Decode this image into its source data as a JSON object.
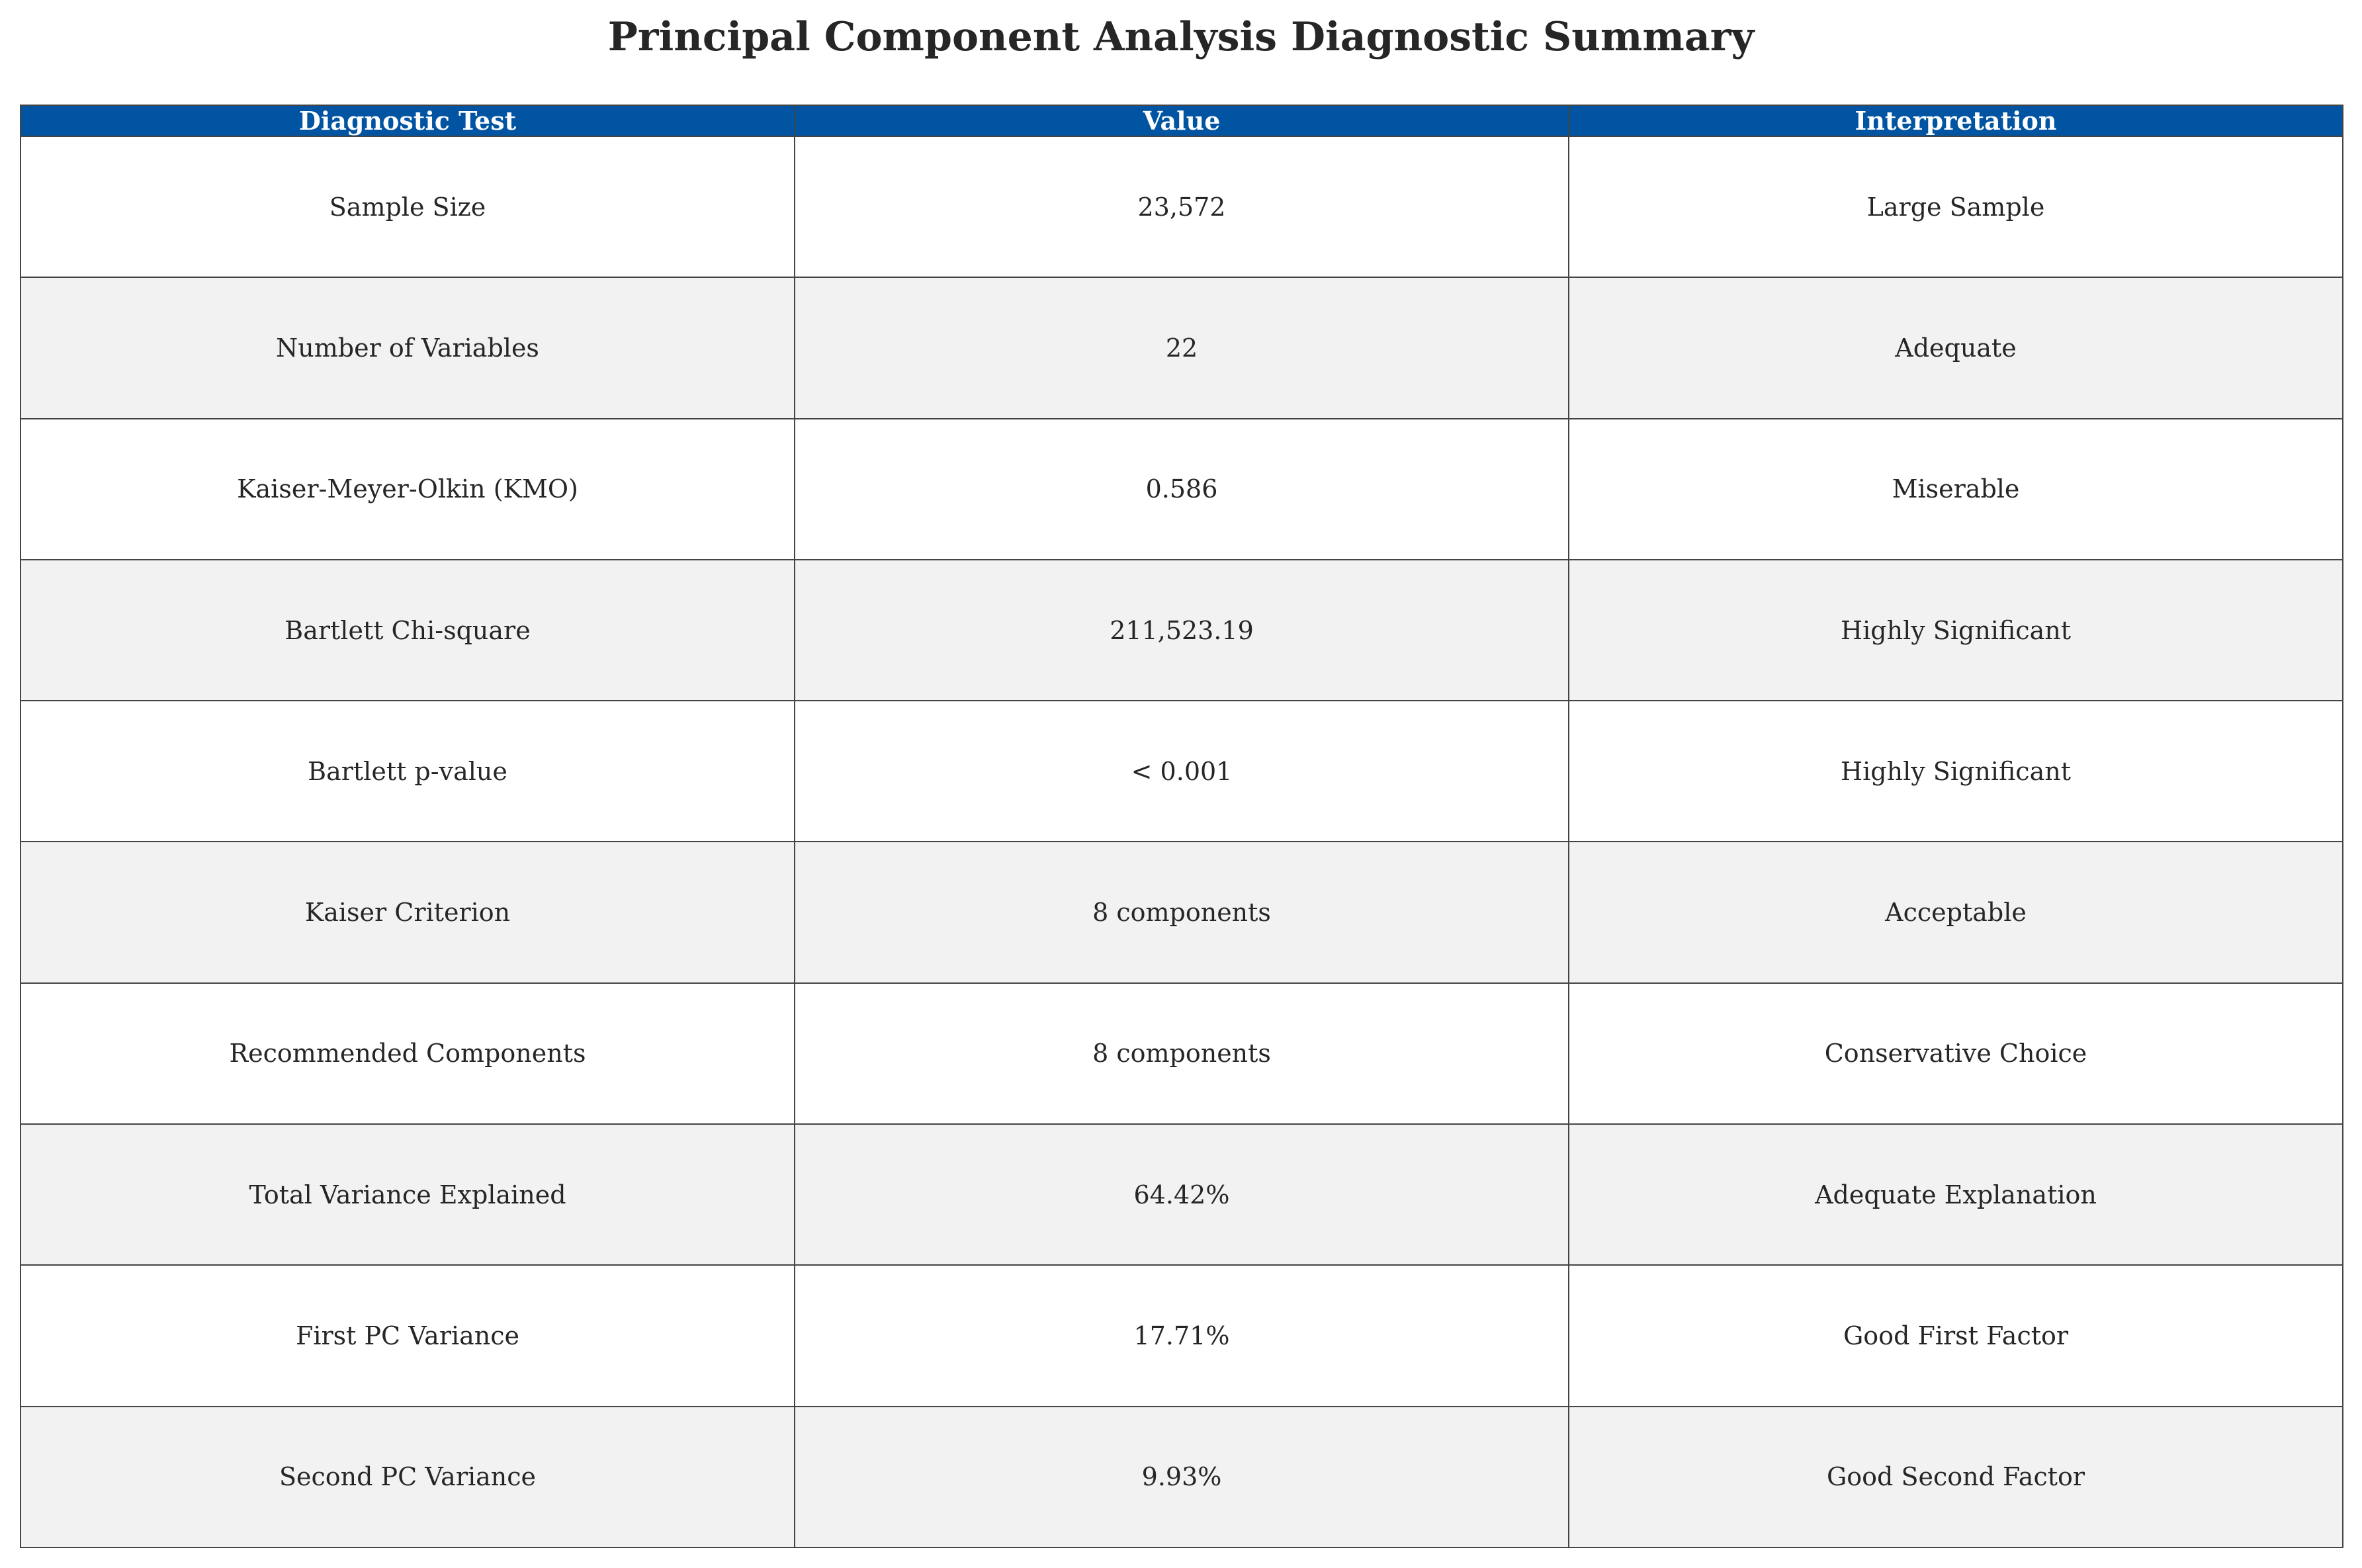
{
  "title": "Principal Component Analysis Diagnostic Summary",
  "colors": {
    "header_bg": "#0054a2",
    "header_text": "#ffffff",
    "row_alt_bg": "#f2f2f2",
    "row_bg": "#ffffff",
    "border": "#444444"
  },
  "chart_data": {
    "type": "table",
    "title": "Principal Component Analysis Diagnostic Summary",
    "columns": [
      "Diagnostic Test",
      "Value",
      "Interpretation"
    ],
    "rows": [
      [
        "Sample Size",
        "23,572",
        "Large Sample"
      ],
      [
        "Number of Variables",
        "22",
        "Adequate"
      ],
      [
        "Kaiser-Meyer-Olkin (KMO)",
        "0.586",
        "Miserable"
      ],
      [
        "Bartlett Chi-square",
        "211,523.19",
        "Highly Significant"
      ],
      [
        "Bartlett p-value",
        "< 0.001",
        "Highly Significant"
      ],
      [
        "Kaiser Criterion",
        "8 components",
        "Acceptable"
      ],
      [
        "Recommended Components",
        "8 components",
        "Conservative Choice"
      ],
      [
        "Total Variance Explained",
        "64.42%",
        "Adequate Explanation"
      ],
      [
        "First PC Variance",
        "17.71%",
        "Good First Factor"
      ],
      [
        "Second PC Variance",
        "9.93%",
        "Good Second Factor"
      ]
    ]
  }
}
